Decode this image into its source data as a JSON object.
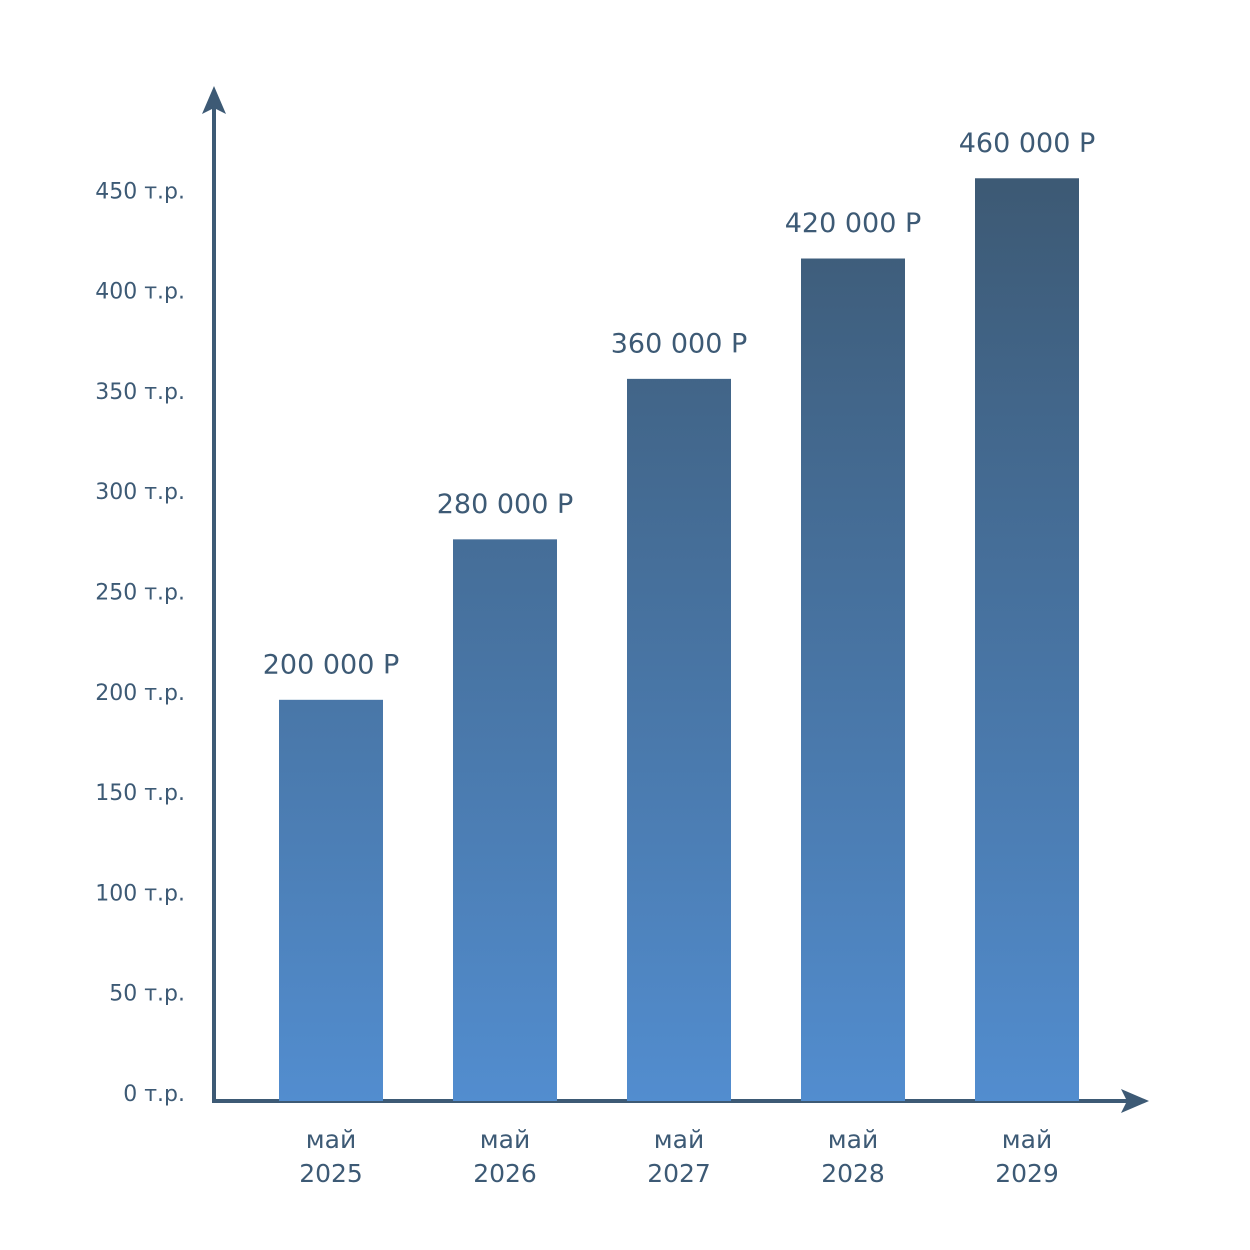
{
  "chart_data": {
    "type": "bar",
    "categories": [
      "май 2025",
      "май 2026",
      "май 2027",
      "май 2028",
      "май 2029"
    ],
    "values": [
      200,
      280,
      360,
      420,
      460
    ],
    "value_labels": [
      "200 000 Р",
      "280 000 Р",
      "360 000 Р",
      "420 000 Р",
      "460 000 Р"
    ],
    "gradient": [
      "#3d5a75",
      "#528dcf"
    ],
    "ylim": [
      0,
      505
    ],
    "yticks": [
      {
        "value": 0,
        "label": "0 т.р."
      },
      {
        "value": 50,
        "label": "50 т.р."
      },
      {
        "value": 100,
        "label": "100 т.р."
      },
      {
        "value": 150,
        "label": "150 т.р."
      },
      {
        "value": 200,
        "label": "200 т.р."
      },
      {
        "value": 250,
        "label": "250 т.р."
      },
      {
        "value": 300,
        "label": "300 т.р."
      },
      {
        "value": 350,
        "label": "350 т.р."
      },
      {
        "value": 400,
        "label": "400 т.р."
      },
      {
        "value": 450,
        "label": "450 т.р."
      }
    ]
  }
}
